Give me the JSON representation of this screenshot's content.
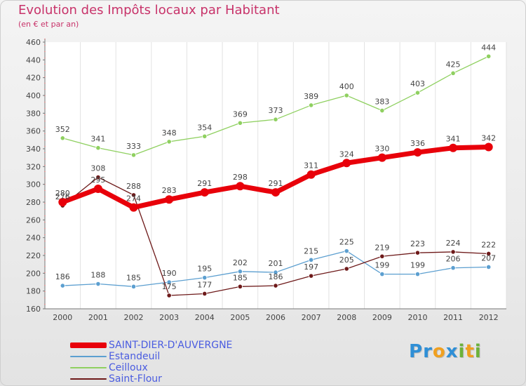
{
  "title": "Evolution des Impôts locaux par Habitant",
  "subtitle": "(en € et par an)",
  "brand": {
    "text": "Proxiti",
    "letters": [
      {
        "ch": "P",
        "color": "#2f8fd6"
      },
      {
        "ch": "r",
        "color": "#2f8fd6"
      },
      {
        "ch": "o",
        "color": "#f0a020"
      },
      {
        "ch": "x",
        "color": "#2f8fd6"
      },
      {
        "ch": "i",
        "color": "#6cb23a"
      },
      {
        "ch": "t",
        "color": "#f0a020"
      },
      {
        "ch": "i",
        "color": "#6cb23a"
      }
    ]
  },
  "chart_data": {
    "type": "line",
    "title": "Evolution des Impôts locaux par Habitant",
    "subtitle": "(en € et par an)",
    "xlabel": "",
    "ylabel": "",
    "ylim": [
      160,
      460
    ],
    "yticks": [
      160,
      180,
      200,
      220,
      240,
      260,
      280,
      300,
      320,
      340,
      360,
      380,
      400,
      420,
      440,
      460
    ],
    "categories": [
      "2000",
      "2001",
      "2002",
      "2003",
      "2004",
      "2005",
      "2006",
      "2007",
      "2008",
      "2009",
      "2010",
      "2011",
      "2012"
    ],
    "grid": "vertical",
    "legend_position": "bottom-left",
    "series": [
      {
        "name": "SAINT-DIER-D'AUVERGNE",
        "color": "#e8000a",
        "style": "thick",
        "values": [
          280,
          295,
          274,
          283,
          291,
          298,
          291,
          311,
          324,
          330,
          336,
          341,
          342
        ],
        "labels": [
          "280",
          "295",
          "274",
          "283",
          "291",
          "298",
          "291",
          "311",
          "324",
          "330",
          "336",
          "341",
          "342"
        ]
      },
      {
        "name": "Estandeuil",
        "color": "#5c9fd0",
        "style": "thin",
        "values": [
          186,
          188,
          185,
          190,
          195,
          202,
          201,
          215,
          225,
          199,
          199,
          206,
          207
        ],
        "labels": [
          "186",
          "188",
          "185",
          "190",
          "195",
          "202",
          "201",
          "215",
          "225",
          "199",
          "199",
          "206",
          "207"
        ]
      },
      {
        "name": "Ceilloux",
        "color": "#8fd060",
        "style": "thin",
        "values": [
          352,
          341,
          333,
          348,
          354,
          369,
          373,
          389,
          400,
          383,
          403,
          425,
          444
        ],
        "labels": [
          "352",
          "341",
          "333",
          "348",
          "354",
          "369",
          "373",
          "389",
          "400",
          "383",
          "403",
          "425",
          "444"
        ]
      },
      {
        "name": "Saint-Flour",
        "color": "#6e1a1a",
        "style": "thin",
        "values": [
          276,
          308,
          288,
          175,
          177,
          185,
          186,
          197,
          205,
          219,
          223,
          224,
          222
        ],
        "labels": [
          "276",
          "308",
          "288",
          "175",
          "177",
          "185",
          "186",
          "197",
          "205",
          "219",
          "223",
          "224",
          "222"
        ]
      }
    ]
  }
}
